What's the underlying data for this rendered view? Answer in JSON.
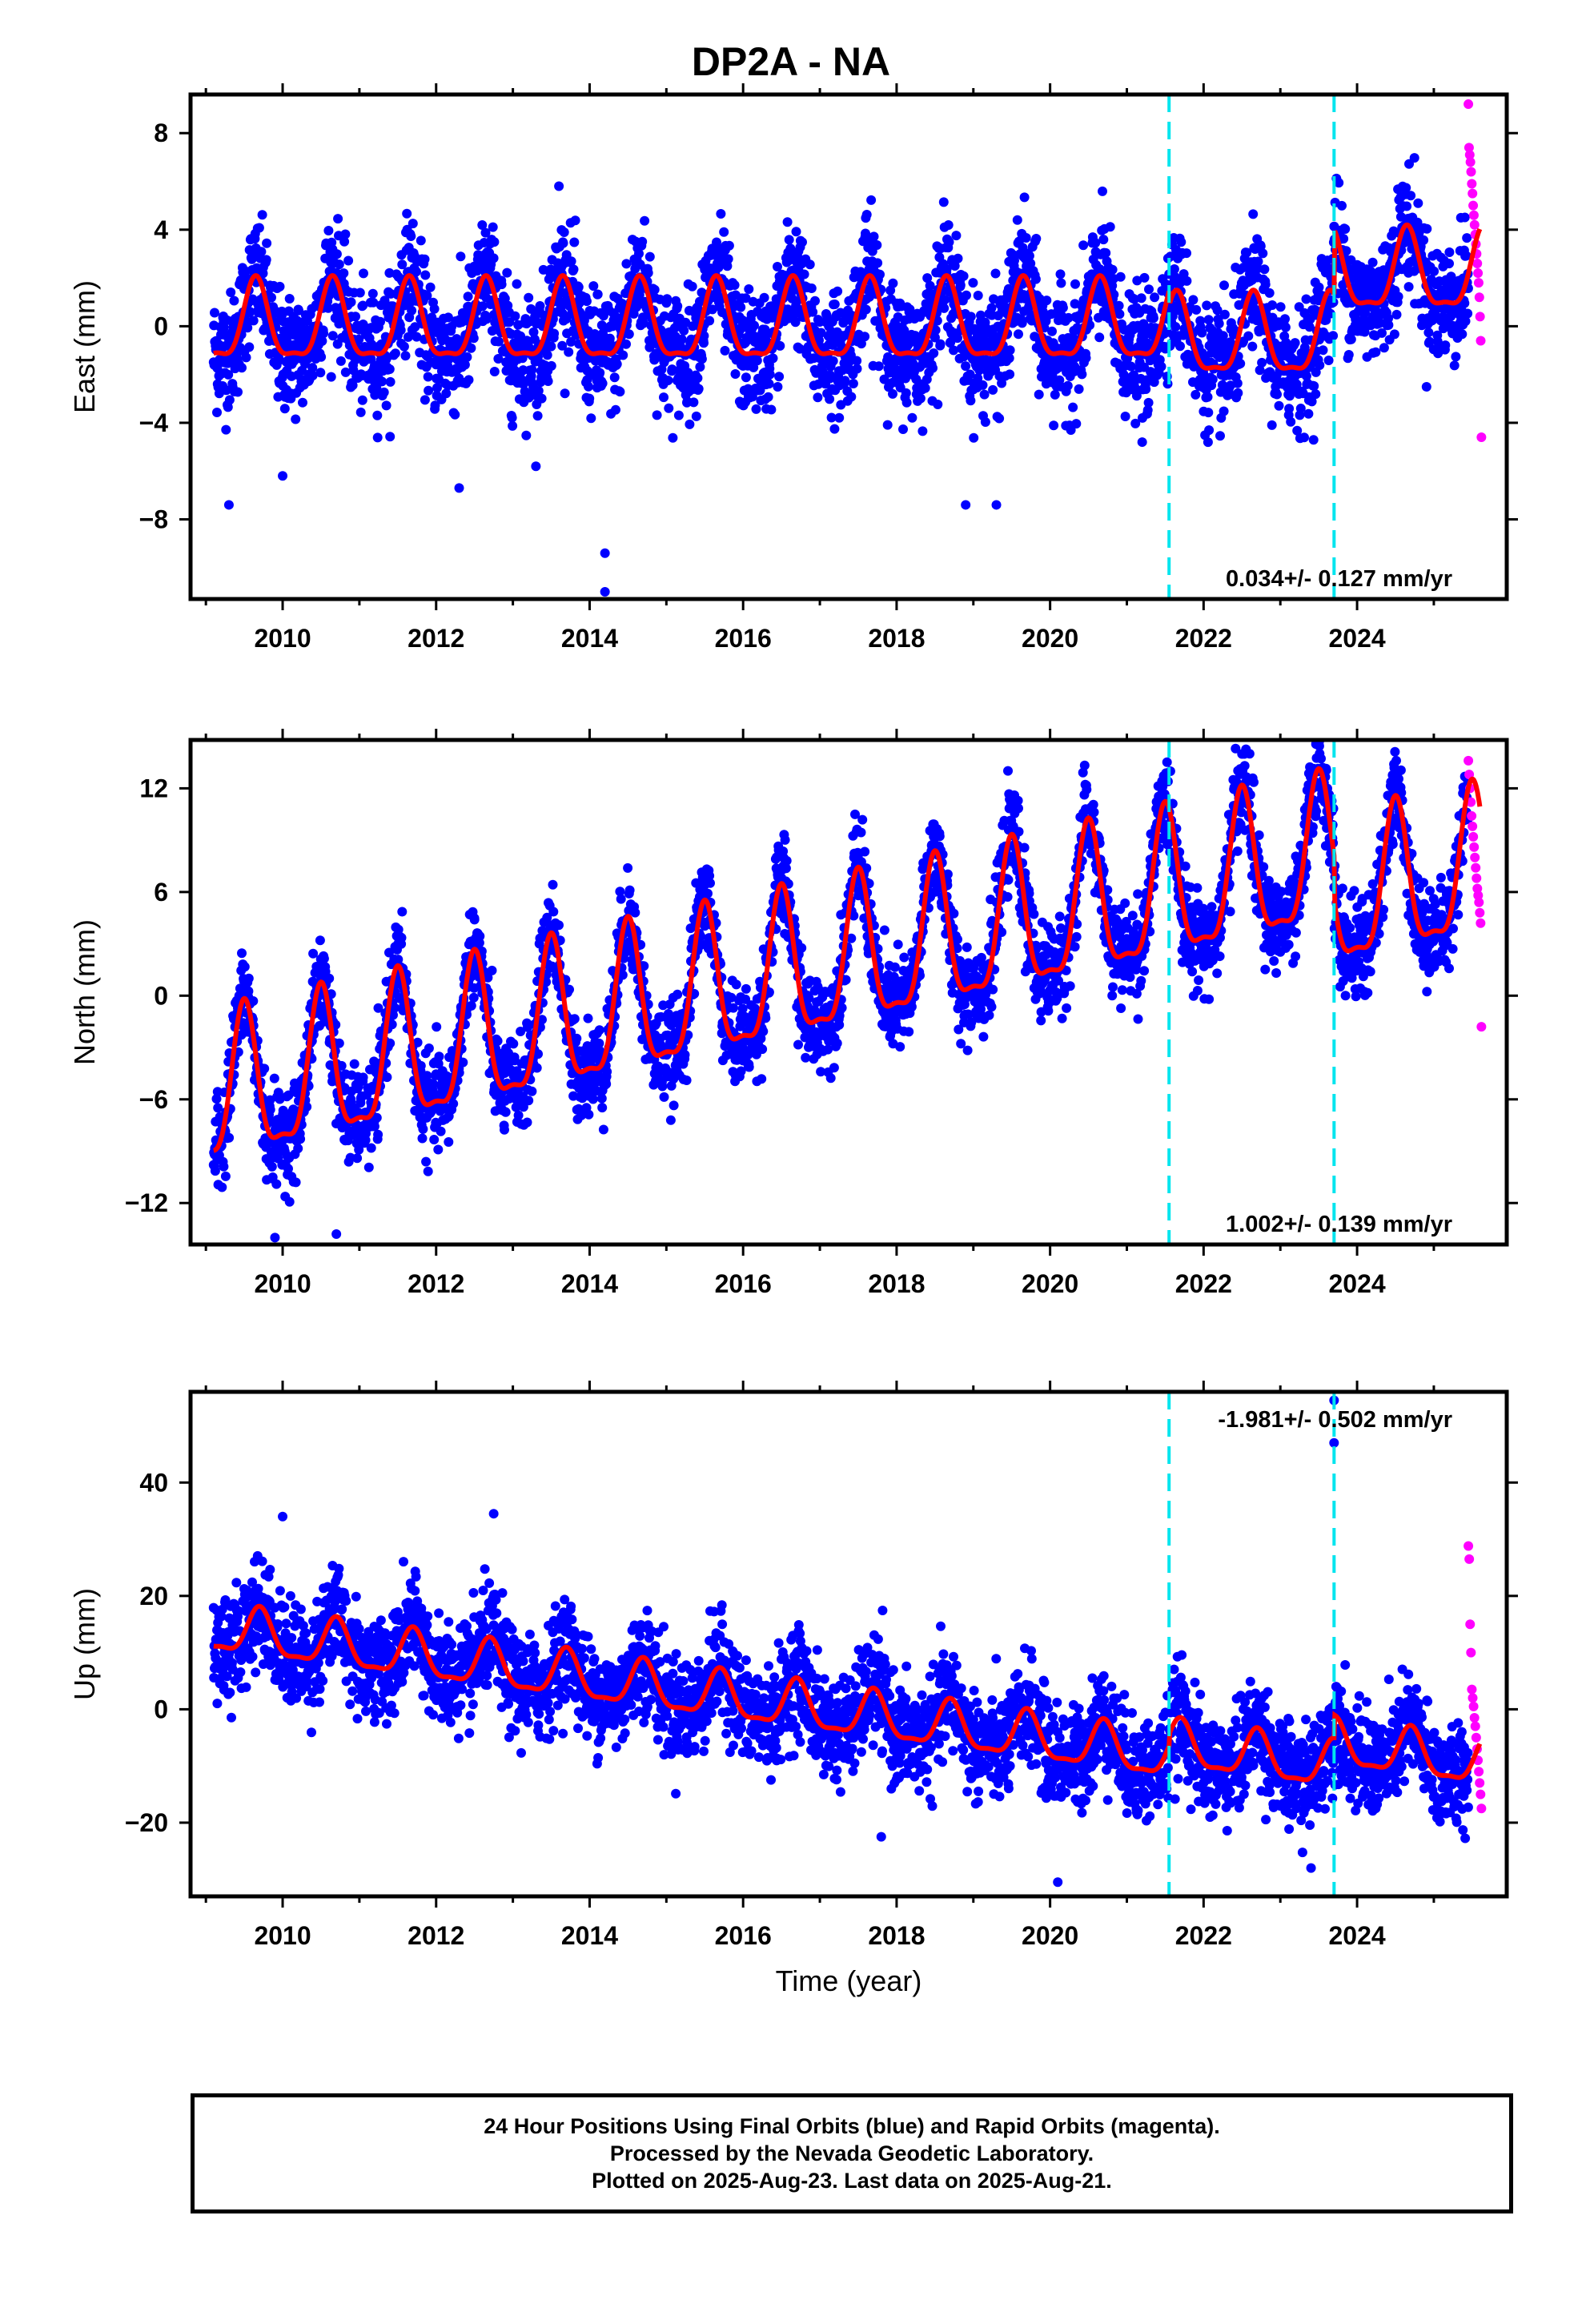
{
  "title": "DP2A - NA",
  "xlabel": "Time (year)",
  "footer": {
    "line1": "24 Hour Positions Using Final Orbits (blue) and Rapid Orbits (magenta).",
    "line2": "Processed by the Nevada Geodetic Laboratory.",
    "line3": "Plotted on 2025-Aug-23. Last data on 2025-Aug-21."
  },
  "colors": {
    "final_points": "#0000ff",
    "rapid_points": "#ff00ff",
    "model": "#ff0000",
    "steps": "#00e5ee"
  },
  "chart_data": [
    {
      "type": "scatter",
      "component": "east",
      "ylabel": "East (mm)",
      "xlim": [
        2008.8,
        2025.95
      ],
      "ylim": [
        -11.3,
        9.6
      ],
      "xticks": [
        2010,
        2012,
        2014,
        2016,
        2018,
        2020,
        2022,
        2024
      ],
      "yticks": [
        -8,
        -4,
        0,
        4,
        8
      ],
      "ytick_labels": [
        "−8",
        "−4",
        "0",
        "4",
        "8"
      ],
      "rate_label": "0.034+/- 0.127 mm/yr",
      "rate_position": "bottom-right",
      "steps": [
        2021.55,
        2023.7
      ],
      "model": {
        "start": 2009.1,
        "end": 2025.6,
        "seasonal_amplitude": 2.0,
        "seasonal_phase_peak": 0.65,
        "offsets": [
          {
            "from": 2009.1,
            "to": 2021.55,
            "mean": 0.0
          },
          {
            "from": 2021.55,
            "to": 2023.7,
            "mean": -0.6
          },
          {
            "from": 2023.7,
            "to": 2025.6,
            "mean": 2.1
          }
        ]
      },
      "scatter_sigma": 1.2,
      "outliers": [
        {
          "x": 2009.3,
          "y": -7.4
        },
        {
          "x": 2010.0,
          "y": -6.2
        },
        {
          "x": 2012.3,
          "y": -6.7
        },
        {
          "x": 2013.3,
          "y": -5.8
        },
        {
          "x": 2014.2,
          "y": -9.4
        },
        {
          "x": 2014.2,
          "y": -11.0
        },
        {
          "x": 2018.9,
          "y": -7.4
        },
        {
          "x": 2019.3,
          "y": -7.4
        },
        {
          "x": 2021.2,
          "y": -4.8
        },
        {
          "x": 2013.6,
          "y": 5.8
        }
      ],
      "rapid": {
        "x_start": 2025.45,
        "x_end": 2025.62,
        "values": [
          9.2,
          7.4,
          7.1,
          6.8,
          6.4,
          5.9,
          5.5,
          5.0,
          4.6,
          4.2,
          3.8,
          3.4,
          3.0,
          2.6,
          2.2,
          1.8,
          1.2,
          0.4,
          -0.6,
          -4.6
        ]
      }
    },
    {
      "type": "scatter",
      "component": "north",
      "ylabel": "North (mm)",
      "xlim": [
        2008.8,
        2025.95
      ],
      "ylim": [
        -14.4,
        14.8
      ],
      "xticks": [
        2010,
        2012,
        2014,
        2016,
        2018,
        2020,
        2022,
        2024
      ],
      "yticks": [
        -12,
        -6,
        0,
        6,
        12
      ],
      "ytick_labels": [
        "−12",
        "−6",
        "0",
        "6",
        "12"
      ],
      "rate_label": "1.002+/- 0.139 mm/yr",
      "rate_position": "bottom-right",
      "steps": [
        2021.55,
        2023.7
      ],
      "model": {
        "start": 2009.1,
        "end": 2025.6,
        "seasonal_amplitude": 5.2,
        "seasonal_phase_peak": 0.5,
        "trend_start": -6.0,
        "trend_per_year": 0.95,
        "offsets": [
          {
            "from": 2009.1,
            "to": 2021.55,
            "mean": 0.0
          },
          {
            "from": 2021.55,
            "to": 2023.7,
            "mean": 0.0
          },
          {
            "from": 2023.7,
            "to": 2025.6,
            "mean": -2.5
          }
        ]
      },
      "scatter_sigma": 1.3,
      "outliers": [
        {
          "x": 2009.9,
          "y": -14.0
        },
        {
          "x": 2010.7,
          "y": -13.8
        },
        {
          "x": 2012.5,
          "y": 4.4
        },
        {
          "x": 2022.6,
          "y": 14.0
        }
      ],
      "rapid": {
        "x_start": 2025.45,
        "x_end": 2025.62,
        "values": [
          13.6,
          12.8,
          12.0,
          11.2,
          10.4,
          9.8,
          9.2,
          8.6,
          8.0,
          7.4,
          6.8,
          6.2,
          5.8,
          5.4,
          4.8,
          4.2,
          -1.8
        ]
      }
    },
    {
      "type": "scatter",
      "component": "up",
      "ylabel": "Up (mm)",
      "xlim": [
        2008.8,
        2025.95
      ],
      "ylim": [
        -33,
        56
      ],
      "xticks": [
        2010,
        2012,
        2014,
        2016,
        2018,
        2020,
        2022,
        2024
      ],
      "yticks": [
        -20,
        0,
        20,
        40
      ],
      "ytick_labels": [
        "−20",
        "0",
        "20",
        "40"
      ],
      "rate_label": "-1.981+/- 0.502 mm/yr",
      "rate_position": "top-right",
      "steps": [
        2021.55,
        2023.7
      ],
      "model": {
        "start": 2009.1,
        "end": 2025.6,
        "seasonal_amplitude": 5.0,
        "seasonal_phase_peak": 0.7,
        "trend_start": 14.0,
        "trend_per_year": -1.8,
        "offsets": [
          {
            "from": 2009.1,
            "to": 2021.55,
            "mean": 0.0
          },
          {
            "from": 2021.55,
            "to": 2023.7,
            "mean": 2.0
          },
          {
            "from": 2023.7,
            "to": 2025.6,
            "mean": 6.0
          }
        ]
      },
      "scatter_sigma": 4.5,
      "outliers": [
        {
          "x": 2023.7,
          "y": 54.5
        },
        {
          "x": 2023.7,
          "y": 47.0
        },
        {
          "x": 2010.0,
          "y": 34.0
        },
        {
          "x": 2012.75,
          "y": 34.5
        },
        {
          "x": 2020.1,
          "y": -30.5
        },
        {
          "x": 2023.4,
          "y": -28.0
        },
        {
          "x": 2017.8,
          "y": -22.5
        }
      ],
      "rapid": {
        "x_start": 2025.45,
        "x_end": 2025.62,
        "values": [
          28.8,
          26.5,
          15.0,
          10.0,
          3.5,
          2.0,
          0.5,
          -1.5,
          -3.0,
          -5.0,
          -7.0,
          -9.0,
          -11.0,
          -13.0,
          -15.0,
          -17.5
        ]
      }
    }
  ]
}
